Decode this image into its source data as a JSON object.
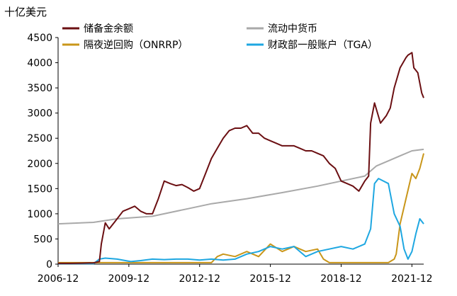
{
  "chart_data": {
    "type": "line",
    "unit_label": "十亿美元",
    "x_tick_labels": [
      "2006-12",
      "2009-12",
      "2012-12",
      "2015-12",
      "2018-12",
      "2021-12"
    ],
    "x_range": [
      "2006-12",
      "2022-06"
    ],
    "y_ticks": [
      0,
      500,
      1000,
      1500,
      2000,
      2500,
      3000,
      3500,
      4000,
      4500
    ],
    "ylim": [
      0,
      4500
    ],
    "grid": false,
    "legend_position": "top",
    "series": [
      {
        "name": "储备金余额",
        "color": "#6B0F12",
        "points": [
          [
            "2006-12",
            15
          ],
          [
            "2007-06",
            15
          ],
          [
            "2007-12",
            20
          ],
          [
            "2008-06",
            25
          ],
          [
            "2008-09",
            50
          ],
          [
            "2008-10",
            400
          ],
          [
            "2008-12",
            820
          ],
          [
            "2009-02",
            700
          ],
          [
            "2009-05",
            850
          ],
          [
            "2009-09",
            1050
          ],
          [
            "2009-12",
            1100
          ],
          [
            "2010-03",
            1150
          ],
          [
            "2010-06",
            1050
          ],
          [
            "2010-09",
            1000
          ],
          [
            "2010-12",
            1000
          ],
          [
            "2011-03",
            1300
          ],
          [
            "2011-06",
            1650
          ],
          [
            "2011-09",
            1600
          ],
          [
            "2011-12",
            1560
          ],
          [
            "2012-03",
            1580
          ],
          [
            "2012-06",
            1520
          ],
          [
            "2012-09",
            1450
          ],
          [
            "2012-12",
            1500
          ],
          [
            "2013-03",
            1800
          ],
          [
            "2013-06",
            2100
          ],
          [
            "2013-09",
            2300
          ],
          [
            "2013-12",
            2500
          ],
          [
            "2014-03",
            2650
          ],
          [
            "2014-06",
            2700
          ],
          [
            "2014-09",
            2700
          ],
          [
            "2014-12",
            2750
          ],
          [
            "2015-03",
            2600
          ],
          [
            "2015-06",
            2600
          ],
          [
            "2015-09",
            2500
          ],
          [
            "2015-12",
            2450
          ],
          [
            "2016-03",
            2400
          ],
          [
            "2016-06",
            2350
          ],
          [
            "2016-09",
            2350
          ],
          [
            "2016-12",
            2350
          ],
          [
            "2017-03",
            2300
          ],
          [
            "2017-06",
            2250
          ],
          [
            "2017-09",
            2250
          ],
          [
            "2017-12",
            2200
          ],
          [
            "2018-03",
            2150
          ],
          [
            "2018-06",
            2000
          ],
          [
            "2018-09",
            1900
          ],
          [
            "2018-12",
            1650
          ],
          [
            "2019-03",
            1600
          ],
          [
            "2019-06",
            1550
          ],
          [
            "2019-09",
            1450
          ],
          [
            "2019-12",
            1650
          ],
          [
            "2020-02",
            1750
          ],
          [
            "2020-03",
            2800
          ],
          [
            "2020-05",
            3200
          ],
          [
            "2020-08",
            2800
          ],
          [
            "2020-11",
            2950
          ],
          [
            "2021-01",
            3100
          ],
          [
            "2021-03",
            3500
          ],
          [
            "2021-06",
            3900
          ],
          [
            "2021-09",
            4100
          ],
          [
            "2021-10",
            4150
          ],
          [
            "2021-12",
            4200
          ],
          [
            "2022-01",
            3900
          ],
          [
            "2022-03",
            3800
          ],
          [
            "2022-05",
            3400
          ],
          [
            "2022-06",
            3300
          ]
        ]
      },
      {
        "name": "流动中货币",
        "color": "#A9A9A9",
        "points": [
          [
            "2006-12",
            800
          ],
          [
            "2008-06",
            830
          ],
          [
            "2009-06",
            900
          ],
          [
            "2010-12",
            950
          ],
          [
            "2012-06",
            1100
          ],
          [
            "2013-06",
            1200
          ],
          [
            "2014-12",
            1300
          ],
          [
            "2016-06",
            1420
          ],
          [
            "2017-12",
            1550
          ],
          [
            "2018-12",
            1650
          ],
          [
            "2019-12",
            1750
          ],
          [
            "2020-03",
            1850
          ],
          [
            "2020-06",
            1950
          ],
          [
            "2020-12",
            2050
          ],
          [
            "2021-06",
            2150
          ],
          [
            "2021-12",
            2250
          ],
          [
            "2022-06",
            2280
          ]
        ]
      },
      {
        "name": "隔夜逆回购（ONRRP）",
        "color": "#C9961A",
        "points": [
          [
            "2006-12",
            30
          ],
          [
            "2013-06",
            30
          ],
          [
            "2013-09",
            150
          ],
          [
            "2013-12",
            200
          ],
          [
            "2014-06",
            150
          ],
          [
            "2014-12",
            250
          ],
          [
            "2015-06",
            150
          ],
          [
            "2015-12",
            400
          ],
          [
            "2016-06",
            250
          ],
          [
            "2016-12",
            350
          ],
          [
            "2017-06",
            250
          ],
          [
            "2017-12",
            300
          ],
          [
            "2018-03",
            100
          ],
          [
            "2018-06",
            30
          ],
          [
            "2020-12",
            30
          ],
          [
            "2021-03",
            100
          ],
          [
            "2021-04",
            200
          ],
          [
            "2021-06",
            800
          ],
          [
            "2021-09",
            1300
          ],
          [
            "2021-12",
            1800
          ],
          [
            "2022-02",
            1700
          ],
          [
            "2022-04",
            1900
          ],
          [
            "2022-06",
            2200
          ]
        ]
      },
      {
        "name": "财政部一般账户（TGA）",
        "color": "#1EA7E1",
        "points": [
          [
            "2006-12",
            10
          ],
          [
            "2008-06",
            10
          ],
          [
            "2008-09",
            100
          ],
          [
            "2008-12",
            120
          ],
          [
            "2009-06",
            100
          ],
          [
            "2010-01",
            50
          ],
          [
            "2010-06",
            70
          ],
          [
            "2010-12",
            100
          ],
          [
            "2011-06",
            90
          ],
          [
            "2011-12",
            100
          ],
          [
            "2012-06",
            100
          ],
          [
            "2012-12",
            80
          ],
          [
            "2013-06",
            100
          ],
          [
            "2013-12",
            80
          ],
          [
            "2014-06",
            100
          ],
          [
            "2014-12",
            200
          ],
          [
            "2015-06",
            250
          ],
          [
            "2015-12",
            350
          ],
          [
            "2016-06",
            300
          ],
          [
            "2016-12",
            350
          ],
          [
            "2017-06",
            150
          ],
          [
            "2017-12",
            250
          ],
          [
            "2018-06",
            300
          ],
          [
            "2018-12",
            350
          ],
          [
            "2019-06",
            300
          ],
          [
            "2019-12",
            400
          ],
          [
            "2020-03",
            700
          ],
          [
            "2020-05",
            1600
          ],
          [
            "2020-07",
            1700
          ],
          [
            "2020-12",
            1600
          ],
          [
            "2021-03",
            1000
          ],
          [
            "2021-06",
            750
          ],
          [
            "2021-08",
            300
          ],
          [
            "2021-10",
            100
          ],
          [
            "2021-12",
            250
          ],
          [
            "2022-02",
            600
          ],
          [
            "2022-04",
            900
          ],
          [
            "2022-06",
            800
          ]
        ]
      }
    ]
  }
}
